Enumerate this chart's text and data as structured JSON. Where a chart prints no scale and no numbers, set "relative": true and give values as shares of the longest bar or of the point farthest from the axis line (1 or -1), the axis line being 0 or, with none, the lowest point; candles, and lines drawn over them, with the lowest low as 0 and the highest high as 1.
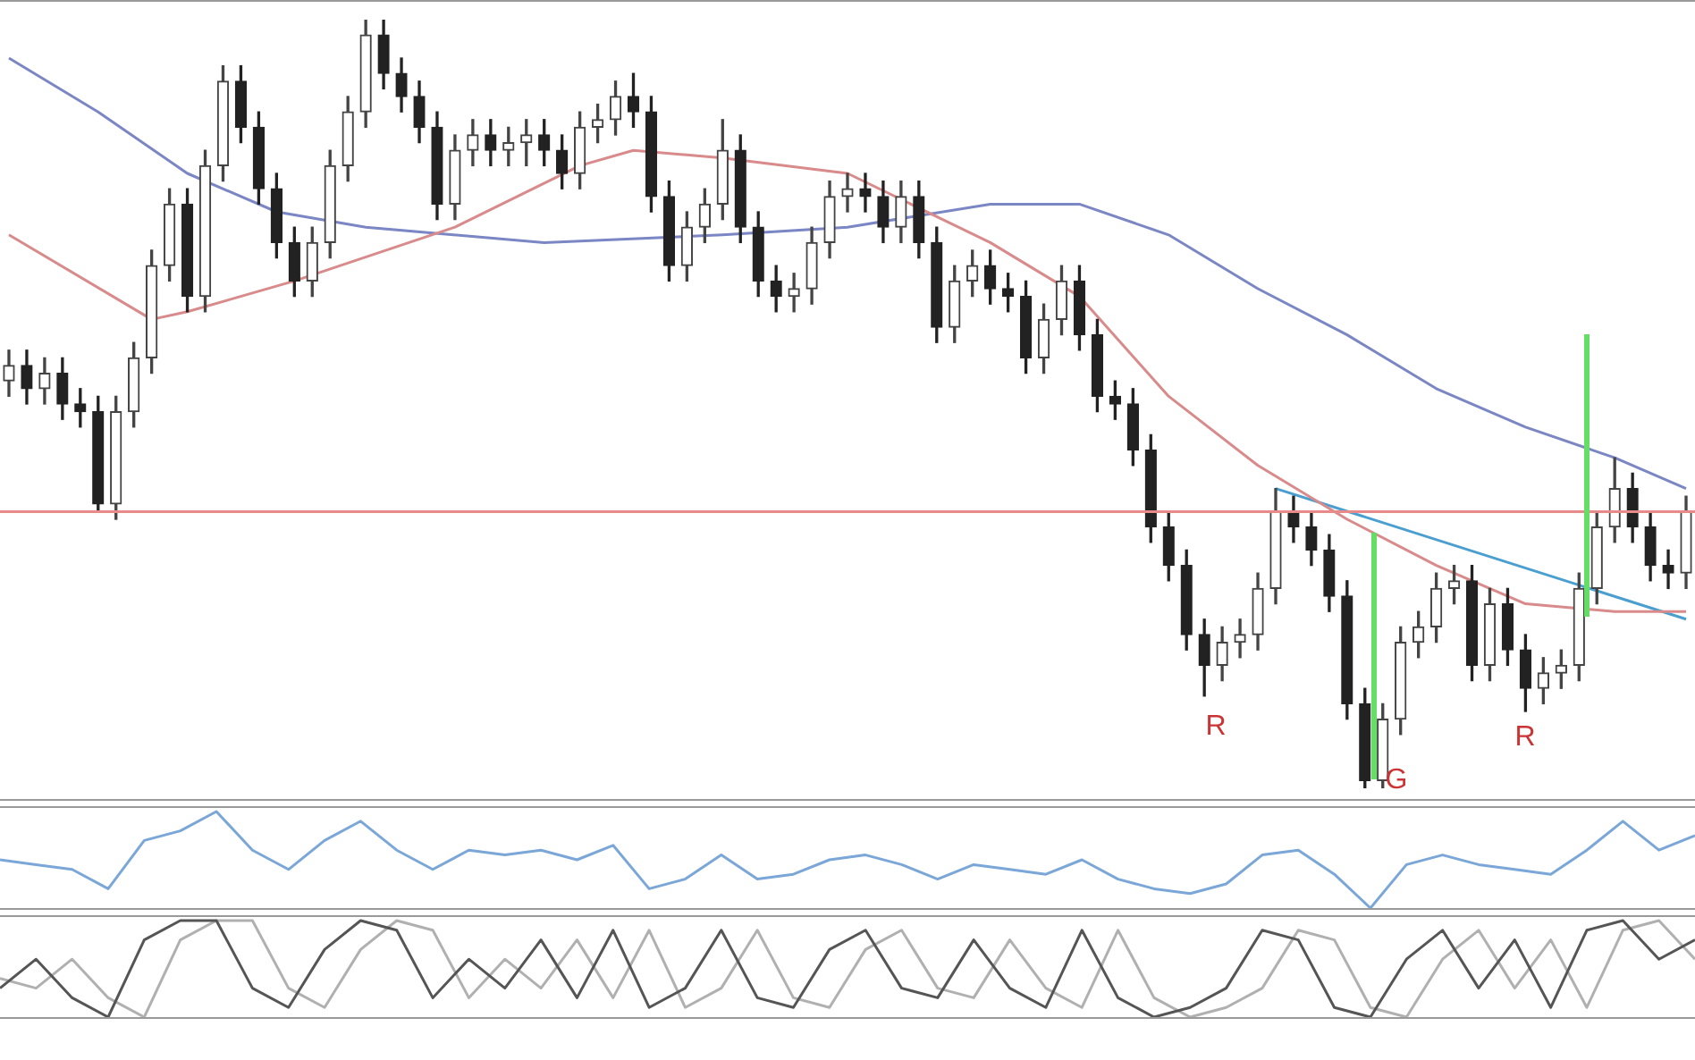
{
  "chart_data": [
    {
      "type": "candlestick",
      "relative": true,
      "colors": [
        "#444444",
        "#222222",
        "#444444",
        "#222222",
        "#222222",
        "#222222",
        "#444444",
        "#444444",
        "#444444",
        "#444444",
        "#222222",
        "#444444",
        "#444444",
        "#222222",
        "#222222",
        "#222222",
        "#222222",
        "#444444",
        "#444444",
        "#444444",
        "#444444",
        "#222222",
        "#222222",
        "#222222",
        "#222222",
        "#444444",
        "#444444",
        "#222222",
        "#444444",
        "#444444",
        "#222222",
        "#222222",
        "#444444",
        "#444444",
        "#444444",
        "#222222",
        "#222222",
        "#222222",
        "#444444",
        "#444444",
        "#444444",
        "#222222",
        "#222222",
        "#222222",
        "#444444",
        "#444444",
        "#444444",
        "#444444",
        "#222222",
        "#222222",
        "#444444",
        "#222222",
        "#222222",
        "#444444",
        "#444444",
        "#222222",
        "#222222",
        "#222222",
        "#444444",
        "#444444",
        "#222222",
        "#222222",
        "#222222",
        "#222222",
        "#222222",
        "#222222",
        "#222222",
        "#222222",
        "#444444",
        "#444444",
        "#444444",
        "#444444",
        "#222222",
        "#222222",
        "#222222",
        "#222222",
        "#222222",
        "#444444",
        "#444444",
        "#444444",
        "#444444",
        "#444444",
        "#222222",
        "#444444",
        "#222222",
        "#222222",
        "#444444",
        "#444444",
        "#444444",
        "#444444",
        "#444444",
        "#222222",
        "#222222",
        "#222222",
        "#444444"
      ],
      "categories": [
        null,
        null,
        null,
        null,
        null,
        null,
        null,
        null,
        null,
        null,
        null,
        null,
        null,
        null,
        null,
        null,
        null,
        null,
        null,
        null,
        null,
        null,
        null,
        null,
        null,
        null,
        null,
        null,
        null,
        null,
        null,
        null,
        null,
        null,
        null,
        null,
        null,
        null,
        null,
        null,
        null,
        null,
        null,
        null,
        null,
        null,
        null,
        null,
        null,
        null,
        null,
        null,
        null,
        null,
        null,
        null,
        null,
        null,
        null,
        null,
        null,
        null,
        null,
        null,
        null,
        null,
        null,
        null,
        null,
        null,
        null,
        null,
        null,
        null,
        null,
        null,
        null,
        null,
        null,
        null,
        null,
        null,
        null,
        null,
        null,
        null,
        null,
        null,
        null,
        null,
        null,
        null,
        null,
        null,
        null
      ],
      "ohlc": [
        [
          0.53,
          0.57,
          0.51,
          0.55
        ],
        [
          0.55,
          0.57,
          0.5,
          0.52
        ],
        [
          0.52,
          0.56,
          0.5,
          0.54
        ],
        [
          0.54,
          0.56,
          0.48,
          0.5
        ],
        [
          0.5,
          0.52,
          0.47,
          0.49
        ],
        [
          0.49,
          0.51,
          0.36,
          0.37
        ],
        [
          0.37,
          0.51,
          0.35,
          0.49
        ],
        [
          0.49,
          0.58,
          0.47,
          0.56
        ],
        [
          0.56,
          0.7,
          0.54,
          0.68
        ],
        [
          0.68,
          0.78,
          0.66,
          0.76
        ],
        [
          0.76,
          0.78,
          0.62,
          0.64
        ],
        [
          0.64,
          0.83,
          0.62,
          0.81
        ],
        [
          0.81,
          0.94,
          0.79,
          0.92
        ],
        [
          0.92,
          0.94,
          0.84,
          0.86
        ],
        [
          0.86,
          0.88,
          0.76,
          0.78
        ],
        [
          0.78,
          0.8,
          0.69,
          0.71
        ],
        [
          0.71,
          0.73,
          0.64,
          0.66
        ],
        [
          0.66,
          0.73,
          0.64,
          0.71
        ],
        [
          0.71,
          0.83,
          0.69,
          0.81
        ],
        [
          0.81,
          0.9,
          0.79,
          0.88
        ],
        [
          0.88,
          1.0,
          0.86,
          0.98
        ],
        [
          0.98,
          1.0,
          0.91,
          0.93
        ],
        [
          0.93,
          0.95,
          0.88,
          0.9
        ],
        [
          0.9,
          0.92,
          0.84,
          0.86
        ],
        [
          0.86,
          0.88,
          0.74,
          0.76
        ],
        [
          0.76,
          0.85,
          0.74,
          0.83
        ],
        [
          0.83,
          0.87,
          0.81,
          0.85
        ],
        [
          0.85,
          0.87,
          0.81,
          0.83
        ],
        [
          0.83,
          0.86,
          0.81,
          0.84
        ],
        [
          0.84,
          0.87,
          0.81,
          0.85
        ],
        [
          0.85,
          0.87,
          0.81,
          0.83
        ],
        [
          0.83,
          0.85,
          0.78,
          0.8
        ],
        [
          0.8,
          0.88,
          0.78,
          0.86
        ],
        [
          0.86,
          0.89,
          0.84,
          0.87
        ],
        [
          0.87,
          0.92,
          0.85,
          0.9
        ],
        [
          0.9,
          0.93,
          0.86,
          0.88
        ],
        [
          0.88,
          0.9,
          0.75,
          0.77
        ],
        [
          0.77,
          0.79,
          0.66,
          0.68
        ],
        [
          0.68,
          0.75,
          0.66,
          0.73
        ],
        [
          0.73,
          0.78,
          0.71,
          0.76
        ],
        [
          0.76,
          0.87,
          0.74,
          0.83
        ],
        [
          0.83,
          0.85,
          0.71,
          0.73
        ],
        [
          0.73,
          0.75,
          0.64,
          0.66
        ],
        [
          0.66,
          0.68,
          0.62,
          0.64
        ],
        [
          0.64,
          0.67,
          0.62,
          0.65
        ],
        [
          0.65,
          0.73,
          0.63,
          0.71
        ],
        [
          0.71,
          0.79,
          0.69,
          0.77
        ],
        [
          0.77,
          0.8,
          0.75,
          0.78
        ],
        [
          0.78,
          0.8,
          0.75,
          0.77
        ],
        [
          0.77,
          0.79,
          0.71,
          0.73
        ],
        [
          0.73,
          0.79,
          0.71,
          0.77
        ],
        [
          0.77,
          0.79,
          0.69,
          0.71
        ],
        [
          0.71,
          0.73,
          0.58,
          0.6
        ],
        [
          0.6,
          0.68,
          0.58,
          0.66
        ],
        [
          0.66,
          0.7,
          0.64,
          0.68
        ],
        [
          0.68,
          0.7,
          0.63,
          0.65
        ],
        [
          0.65,
          0.67,
          0.62,
          0.64
        ],
        [
          0.64,
          0.66,
          0.54,
          0.56
        ],
        [
          0.56,
          0.63,
          0.54,
          0.61
        ],
        [
          0.61,
          0.68,
          0.59,
          0.66
        ],
        [
          0.66,
          0.68,
          0.57,
          0.59
        ],
        [
          0.59,
          0.61,
          0.49,
          0.51
        ],
        [
          0.51,
          0.53,
          0.48,
          0.5
        ],
        [
          0.5,
          0.52,
          0.42,
          0.44
        ],
        [
          0.44,
          0.46,
          0.32,
          0.34
        ],
        [
          0.34,
          0.36,
          0.27,
          0.29
        ],
        [
          0.29,
          0.31,
          0.18,
          0.2
        ],
        [
          0.2,
          0.22,
          0.12,
          0.16
        ],
        [
          0.16,
          0.21,
          0.14,
          0.19
        ],
        [
          0.19,
          0.22,
          0.17,
          0.2
        ],
        [
          0.2,
          0.28,
          0.18,
          0.26
        ],
        [
          0.26,
          0.39,
          0.24,
          0.36
        ],
        [
          0.36,
          0.38,
          0.32,
          0.34
        ],
        [
          0.34,
          0.36,
          0.29,
          0.31
        ],
        [
          0.31,
          0.33,
          0.23,
          0.25
        ],
        [
          0.25,
          0.27,
          0.09,
          0.11
        ],
        [
          0.11,
          0.13,
          0.0,
          0.01
        ],
        [
          0.01,
          0.11,
          0.0,
          0.09
        ],
        [
          0.09,
          0.21,
          0.07,
          0.19
        ],
        [
          0.19,
          0.23,
          0.17,
          0.21
        ],
        [
          0.21,
          0.28,
          0.19,
          0.26
        ],
        [
          0.26,
          0.29,
          0.24,
          0.27
        ],
        [
          0.27,
          0.29,
          0.14,
          0.16
        ],
        [
          0.16,
          0.26,
          0.14,
          0.24
        ],
        [
          0.24,
          0.26,
          0.16,
          0.18
        ],
        [
          0.18,
          0.2,
          0.1,
          0.13
        ],
        [
          0.13,
          0.17,
          0.11,
          0.15
        ],
        [
          0.15,
          0.18,
          0.13,
          0.16
        ],
        [
          0.16,
          0.28,
          0.14,
          0.26
        ],
        [
          0.26,
          0.36,
          0.24,
          0.34
        ],
        [
          0.34,
          0.43,
          0.32,
          0.39
        ],
        [
          0.39,
          0.41,
          0.32,
          0.34
        ],
        [
          0.34,
          0.36,
          0.27,
          0.29
        ],
        [
          0.29,
          0.31,
          0.26,
          0.28
        ],
        [
          0.28,
          0.38,
          0.26,
          0.36
        ]
      ],
      "series": [
        {
          "type": "line",
          "color": "#d98a8a",
          "values": [
            0.72,
            null,
            null,
            null,
            null,
            null,
            null,
            null,
            0.61,
            null,
            0.62,
            null,
            null,
            null,
            null,
            null,
            0.66,
            null,
            null,
            null,
            null,
            null,
            null,
            null,
            null,
            0.73,
            null,
            null,
            null,
            null,
            null,
            null,
            0.81,
            null,
            null,
            0.83,
            null,
            null,
            null,
            null,
            0.82,
            null,
            null,
            null,
            null,
            null,
            null,
            0.8,
            null,
            null,
            null,
            null,
            null,
            null,
            null,
            0.71,
            null,
            null,
            null,
            null,
            0.64,
            null,
            null,
            null,
            null,
            0.51,
            null,
            null,
            null,
            null,
            0.42,
            null,
            null,
            null,
            null,
            0.35,
            null,
            null,
            null,
            null,
            0.29,
            null,
            null,
            null,
            null,
            0.24,
            null,
            null,
            null,
            null,
            0.23,
            null,
            null,
            null,
            0.23
          ]
        },
        {
          "type": "line",
          "color": "#7b86c4",
          "values": [
            0.95,
            null,
            null,
            null,
            null,
            0.88,
            null,
            null,
            null,
            null,
            0.8,
            null,
            null,
            null,
            null,
            0.75,
            null,
            null,
            null,
            null,
            0.73,
            null,
            null,
            null,
            null,
            null,
            null,
            null,
            null,
            null,
            0.71,
            null,
            null,
            null,
            null,
            null,
            null,
            null,
            null,
            null,
            0.72,
            null,
            null,
            null,
            null,
            null,
            null,
            0.73,
            null,
            null,
            null,
            null,
            null,
            null,
            null,
            0.76,
            null,
            null,
            null,
            null,
            0.76,
            null,
            null,
            null,
            null,
            0.72,
            null,
            null,
            null,
            null,
            0.65,
            null,
            null,
            null,
            null,
            0.59,
            null,
            null,
            null,
            null,
            0.52,
            null,
            null,
            null,
            null,
            0.47,
            null,
            null,
            null,
            null,
            0.43,
            null,
            null,
            null,
            0.39
          ]
        },
        {
          "type": "line",
          "color": "#4a9fd0",
          "values": [
            null,
            null,
            null,
            null,
            null,
            null,
            null,
            null,
            null,
            null,
            null,
            null,
            null,
            null,
            null,
            null,
            null,
            null,
            null,
            null,
            null,
            null,
            null,
            null,
            null,
            null,
            null,
            null,
            null,
            null,
            null,
            null,
            null,
            null,
            null,
            null,
            null,
            null,
            null,
            null,
            null,
            null,
            null,
            null,
            null,
            null,
            null,
            null,
            null,
            null,
            null,
            null,
            null,
            null,
            null,
            null,
            null,
            null,
            null,
            null,
            null,
            null,
            null,
            null,
            null,
            null,
            null,
            null,
            null,
            null,
            null,
            0.39,
            null,
            null,
            null,
            null,
            null,
            null,
            null,
            null,
            null,
            null,
            null,
            null,
            null,
            null,
            null,
            null,
            null,
            null,
            null,
            null,
            null,
            null,
            0.22
          ]
        }
      ],
      "ref_lines": [
        {
          "axis": "y",
          "value": 0.36,
          "color": "#e88a8a"
        }
      ],
      "annotations": [
        "R",
        "G",
        "R"
      ]
    },
    {
      "type": "line",
      "relative": true,
      "categories": [
        null,
        null,
        null,
        null,
        null,
        null,
        null,
        null,
        null,
        null,
        null,
        null,
        null,
        null,
        null,
        null,
        null,
        null,
        null,
        null,
        null,
        null,
        null,
        null,
        null,
        null,
        null,
        null,
        null,
        null,
        null,
        null,
        null,
        null,
        null,
        null,
        null,
        null,
        null,
        null,
        null,
        null,
        null,
        null,
        null,
        null,
        null,
        null
      ],
      "series": [
        {
          "color": "#7aa7d8",
          "values": [
            0.5,
            0.45,
            0.4,
            0.2,
            0.7,
            0.8,
            1,
            0.6,
            0.4,
            0.7,
            0.9,
            0.6,
            0.4,
            0.6,
            0.55,
            0.6,
            0.5,
            0.65,
            0.2,
            0.3,
            0.55,
            0.3,
            0.35,
            0.5,
            0.55,
            0.45,
            0.3,
            0.45,
            0.4,
            0.35,
            0.5,
            0.3,
            0.2,
            0.15,
            0.25,
            0.55,
            0.6,
            0.35,
            0,
            0.45,
            0.55,
            0.45,
            0.4,
            0.35,
            0.6,
            0.9,
            0.6,
            0.75
          ]
        }
      ]
    },
    {
      "type": "line",
      "relative": true,
      "categories": [
        null,
        null,
        null,
        null,
        null,
        null,
        null,
        null,
        null,
        null,
        null,
        null,
        null,
        null,
        null,
        null,
        null,
        null,
        null,
        null,
        null,
        null,
        null,
        null,
        null,
        null,
        null,
        null,
        null,
        null,
        null,
        null,
        null,
        null,
        null,
        null,
        null,
        null,
        null,
        null,
        null,
        null,
        null,
        null,
        null,
        null,
        null,
        null
      ],
      "series": [
        {
          "color": "#555555",
          "values": [
            0.3,
            0.6,
            0.2,
            0,
            0.8,
            1,
            1,
            0.3,
            0.1,
            0.7,
            1,
            0.9,
            0.2,
            0.6,
            0.3,
            0.8,
            0.2,
            0.9,
            0.1,
            0.3,
            0.9,
            0.2,
            0.1,
            0.7,
            0.9,
            0.3,
            0.2,
            0.8,
            0.3,
            0.1,
            0.9,
            0.2,
            0,
            0.1,
            0.3,
            0.9,
            0.8,
            0.1,
            0,
            0.6,
            0.9,
            0.3,
            0.8,
            0.1,
            0.9,
            1,
            0.6,
            0.8
          ]
        },
        {
          "color": "#b0b0b0",
          "values": [
            0.4,
            0.3,
            0.6,
            0.2,
            0,
            0.8,
            1,
            1,
            0.3,
            0.1,
            0.7,
            1,
            0.9,
            0.2,
            0.6,
            0.3,
            0.8,
            0.2,
            0.9,
            0.1,
            0.3,
            0.9,
            0.2,
            0.1,
            0.7,
            0.9,
            0.3,
            0.2,
            0.8,
            0.3,
            0.1,
            0.9,
            0.2,
            0,
            0.1,
            0.3,
            0.9,
            0.8,
            0.1,
            0,
            0.6,
            0.9,
            0.3,
            0.8,
            0.1,
            0.9,
            1,
            0.6
          ]
        }
      ]
    }
  ]
}
